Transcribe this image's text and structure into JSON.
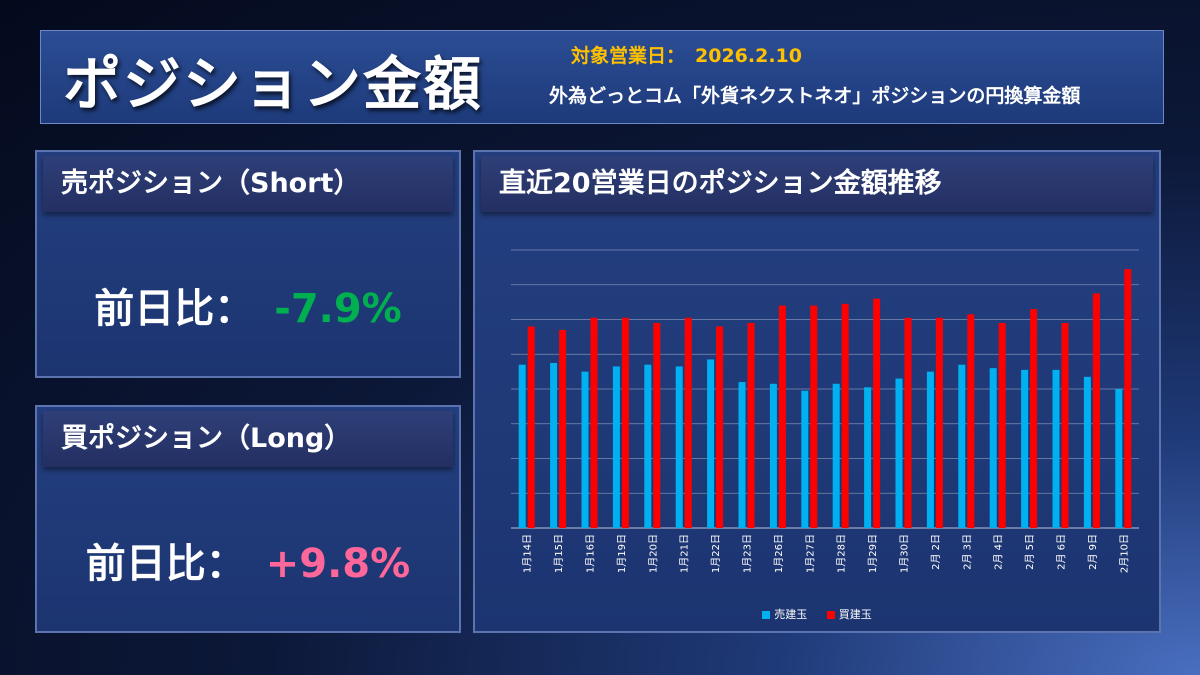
{
  "header": {
    "title": "ポジション金額",
    "date_label": "対象営業日：",
    "date_value": "2026.2.10",
    "subtitle": "外為どっとコム「外貨ネクストネオ」ポジションの円換算金額"
  },
  "short_panel": {
    "title": "売ポジション（Short）",
    "ratio_label": "前日比：",
    "ratio_value": "-7.9%",
    "ratio_color": "#00b050"
  },
  "long_panel": {
    "title": "買ポジション（Long）",
    "ratio_label": "前日比：",
    "ratio_value": "+9.8%",
    "ratio_color": "#ff6699"
  },
  "chart_panel": {
    "title": "直近20営業日のポジション金額推移"
  },
  "chart_data": {
    "type": "bar",
    "title": "直近20営業日のポジション金額推移",
    "categories": [
      "1月14日",
      "1月15日",
      "1月16日",
      "1月19日",
      "1月20日",
      "1月21日",
      "1月22日",
      "1月23日",
      "1月26日",
      "1月27日",
      "1月28日",
      "1月29日",
      "1月30日",
      "2月 2日",
      "2月 3日",
      "2月 4日",
      "2月 5日",
      "2月 6日",
      "2月 9日",
      "2月10日"
    ],
    "series": [
      {
        "name": "売建玉",
        "color": "#00b0f0",
        "values": [
          4.7,
          4.75,
          4.5,
          4.65,
          4.7,
          4.65,
          4.85,
          4.2,
          4.15,
          3.95,
          4.15,
          4.05,
          4.3,
          4.5,
          4.7,
          4.6,
          4.55,
          4.55,
          4.35,
          4.0
        ]
      },
      {
        "name": "買建玉",
        "color": "#ff0000",
        "values": [
          5.8,
          5.7,
          6.05,
          6.05,
          5.9,
          6.05,
          5.8,
          5.9,
          6.4,
          6.4,
          6.45,
          6.6,
          6.05,
          6.05,
          6.15,
          5.9,
          6.3,
          5.9,
          6.75,
          7.45
        ]
      }
    ],
    "ylim": [
      0,
      8
    ],
    "grid": true,
    "legend_position": "bottom"
  }
}
